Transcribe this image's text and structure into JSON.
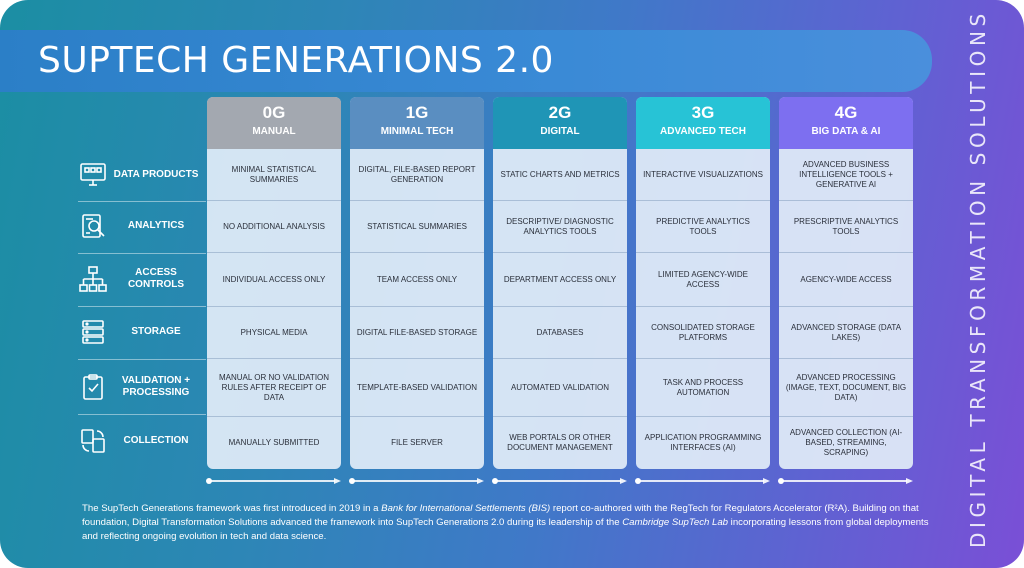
{
  "title": "SUPTECH GENERATIONS 2.0",
  "brand_vertical": "DIGITAL TRANSFORMATION SOLUTIONS",
  "columns": [
    {
      "gen": "0G",
      "label": "MANUAL",
      "color": "#a3a8b0",
      "cells": [
        "Minimal statistical summaries",
        "No additional analysis",
        "Individual access only",
        "Physical media",
        "Manual or no validation rules after receipt of data",
        "Manually submitted"
      ]
    },
    {
      "gen": "1G",
      "label": "MINIMAL TECH",
      "color": "#5a8ec1",
      "cells": [
        "Digital, file-based report generation",
        "Statistical summaries",
        "Team access only",
        "Digital file-based storage",
        "Template-based validation",
        "File server"
      ]
    },
    {
      "gen": "2G",
      "label": "DIGITAL",
      "color": "#1f95b6",
      "cells": [
        "Static charts and metrics",
        "Descriptive/ diagnostic analytics tools",
        "Department access only",
        "Databases",
        "Automated validation",
        "Web portals or other document management"
      ]
    },
    {
      "gen": "3G",
      "label": "ADVANCED TECH",
      "color": "#27c3d6",
      "cells": [
        "Interactive visualizations",
        "Predictive analytics tools",
        "Limited agency-wide access",
        "Consolidated storage platforms",
        "Task and process automation",
        "Application programming interfaces (AI)"
      ]
    },
    {
      "gen": "4G",
      "label": "BIG DATA & AI",
      "color": "#7d6ff0",
      "cells": [
        "Advanced business intelligence tools + generative AI",
        "Prescriptive analytics tools",
        "Agency-wide access",
        "Advanced storage (data lakes)",
        "Advanced processing (image, text, document, big data)",
        "Advanced collection (AI-based, streaming, scraping)"
      ]
    }
  ],
  "rows": [
    {
      "label": "DATA PRODUCTS",
      "icon": "monitor-dashboard-icon"
    },
    {
      "label": "ANALYTICS",
      "icon": "analytics-report-icon"
    },
    {
      "label": "ACCESS CONTROLS",
      "icon": "network-hierarchy-icon"
    },
    {
      "label": "STORAGE",
      "icon": "server-storage-icon"
    },
    {
      "label": "VALIDATION + PROCESSING",
      "icon": "clipboard-check-icon"
    },
    {
      "label": "COLLECTION",
      "icon": "document-sync-icon"
    }
  ],
  "footnote": {
    "p1": "The SupTech Generations framework was first introduced in 2019 in a ",
    "p2": "Bank for International Settlements (BIS)",
    "p3": " report co-authored with the RegTech for Regulators Accelerator (R²A). Building on that foundation, Digital Transformation Solutions advanced the framework into SupTech Generations 2.0 during its leadership of the ",
    "p4": "Cambridge SupTech Lab",
    "p5": " incorporating lessons from global deployments and reflecting ongoing evolution in tech and data science."
  }
}
